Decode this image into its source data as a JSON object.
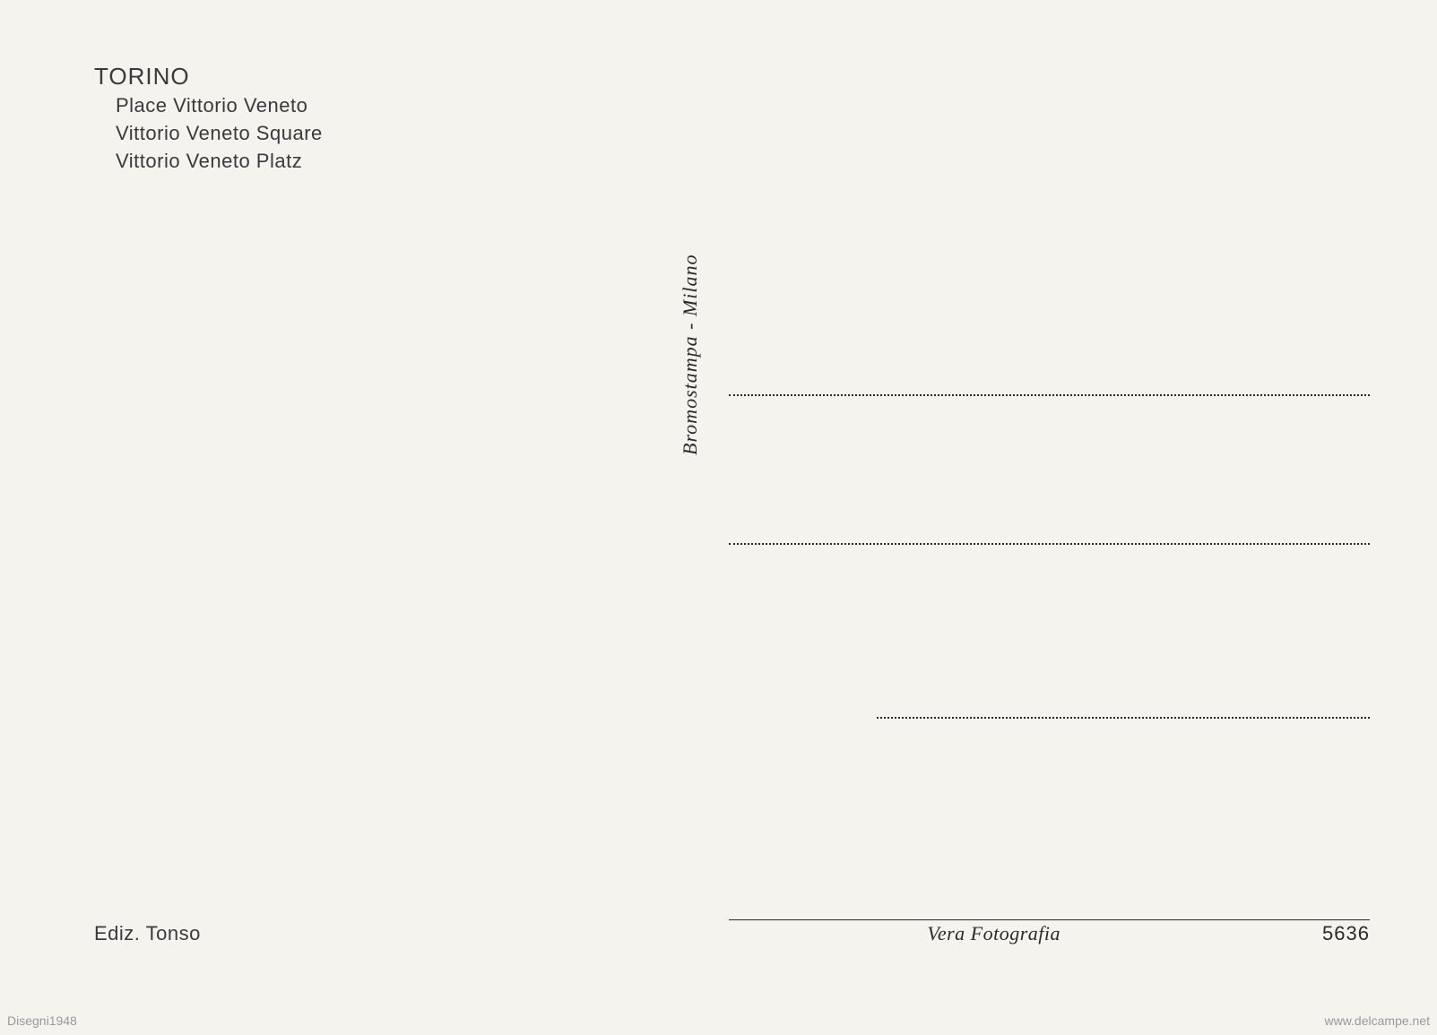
{
  "header": {
    "city": "TORINO",
    "lines": [
      "Place Vittorio Veneto",
      "Vittorio Veneto Square",
      "Vittorio Veneto Platz"
    ]
  },
  "vertical_label": "Bromostampa - Milano",
  "publisher": "Ediz. Tonso",
  "photo_credit": "Vera Fotografia",
  "number": "5636",
  "watermark_left": "Disegni1948",
  "watermark_right": "www.delcampe.net",
  "styling": {
    "background_color": "#f5f3ee",
    "text_color": "#3a3a3a",
    "line_color": "#2a2a2a",
    "city_fontsize": 26,
    "line_fontsize": 22,
    "vertical_fontsize": 22,
    "footer_fontsize": 22,
    "watermark_color": "#999",
    "address_line_spacing_1": 164,
    "address_line_spacing_2": 192,
    "address_lines_width": 715,
    "line_3_width": 550
  }
}
